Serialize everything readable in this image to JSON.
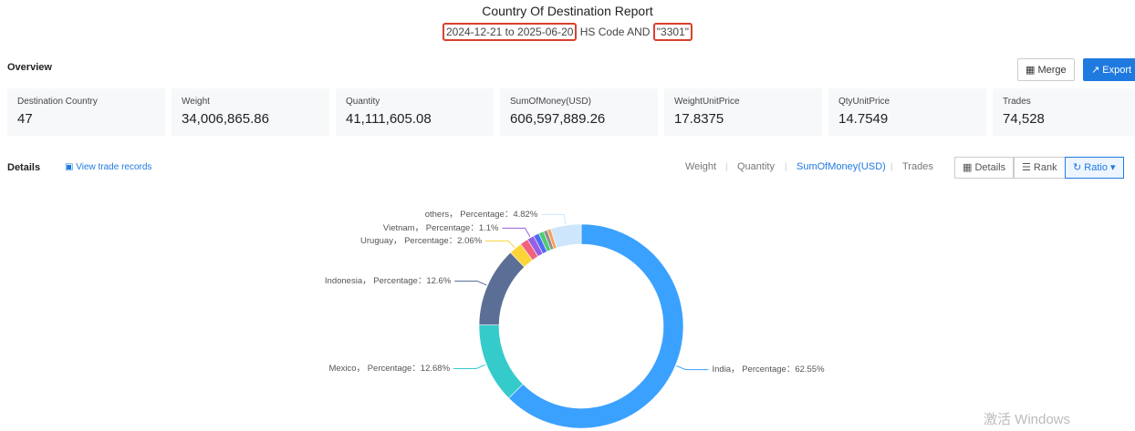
{
  "header": {
    "title": "Country Of Destination Report",
    "date_range": "2024-12-21 to 2025-06-20",
    "query_text": " HS Code AND ",
    "code": "\"3301\""
  },
  "overview": {
    "title": "Overview",
    "merge": "Merge",
    "export": "Export",
    "cards": [
      {
        "label": "Destination Country",
        "value": "47"
      },
      {
        "label": "Weight",
        "value": "34,006,865.86"
      },
      {
        "label": "Quantity",
        "value": "41,111,605.08"
      },
      {
        "label": "SumOfMoney(USD)",
        "value": "606,597,889.26"
      },
      {
        "label": "WeightUnitPrice",
        "value": "17.8375"
      },
      {
        "label": "QtyUnitPrice",
        "value": "14.7549"
      },
      {
        "label": "Trades",
        "value": "74,528"
      }
    ]
  },
  "details": {
    "title": "Details",
    "link": "View trade records",
    "metrics": [
      "Weight",
      "Quantity",
      "SumOfMoney(USD)",
      "Trades"
    ],
    "active_metric": 2,
    "views": [
      "Details",
      "Rank",
      "Ratio"
    ],
    "active_view": 2
  },
  "chart_data": {
    "type": "pie",
    "values": [
      62.55,
      12.68,
      12.6,
      2.06,
      1.3,
      1.1,
      0.9,
      0.8,
      0.6,
      0.59,
      4.82
    ],
    "value_labels": [
      "India， Percentage：62.55%",
      "Mexico， Percentage：12.68%",
      "Indonesia， Percentage：12.6%",
      "Uruguay， Percentage：2.06%",
      null,
      "Vietnam， Percentage：1.1%",
      null,
      null,
      null,
      null,
      "others， Percentage：4.82%"
    ],
    "colors": [
      "#3ba1ff",
      "#36cbcb",
      "#5b6e96",
      "#fbd437",
      "#f2637b",
      "#975fe5",
      "#4d6cf5",
      "#4ecb73",
      "#8e8e8e",
      "#f8a05c",
      "#cde6fb"
    ]
  },
  "watermark": "激活 Windows"
}
